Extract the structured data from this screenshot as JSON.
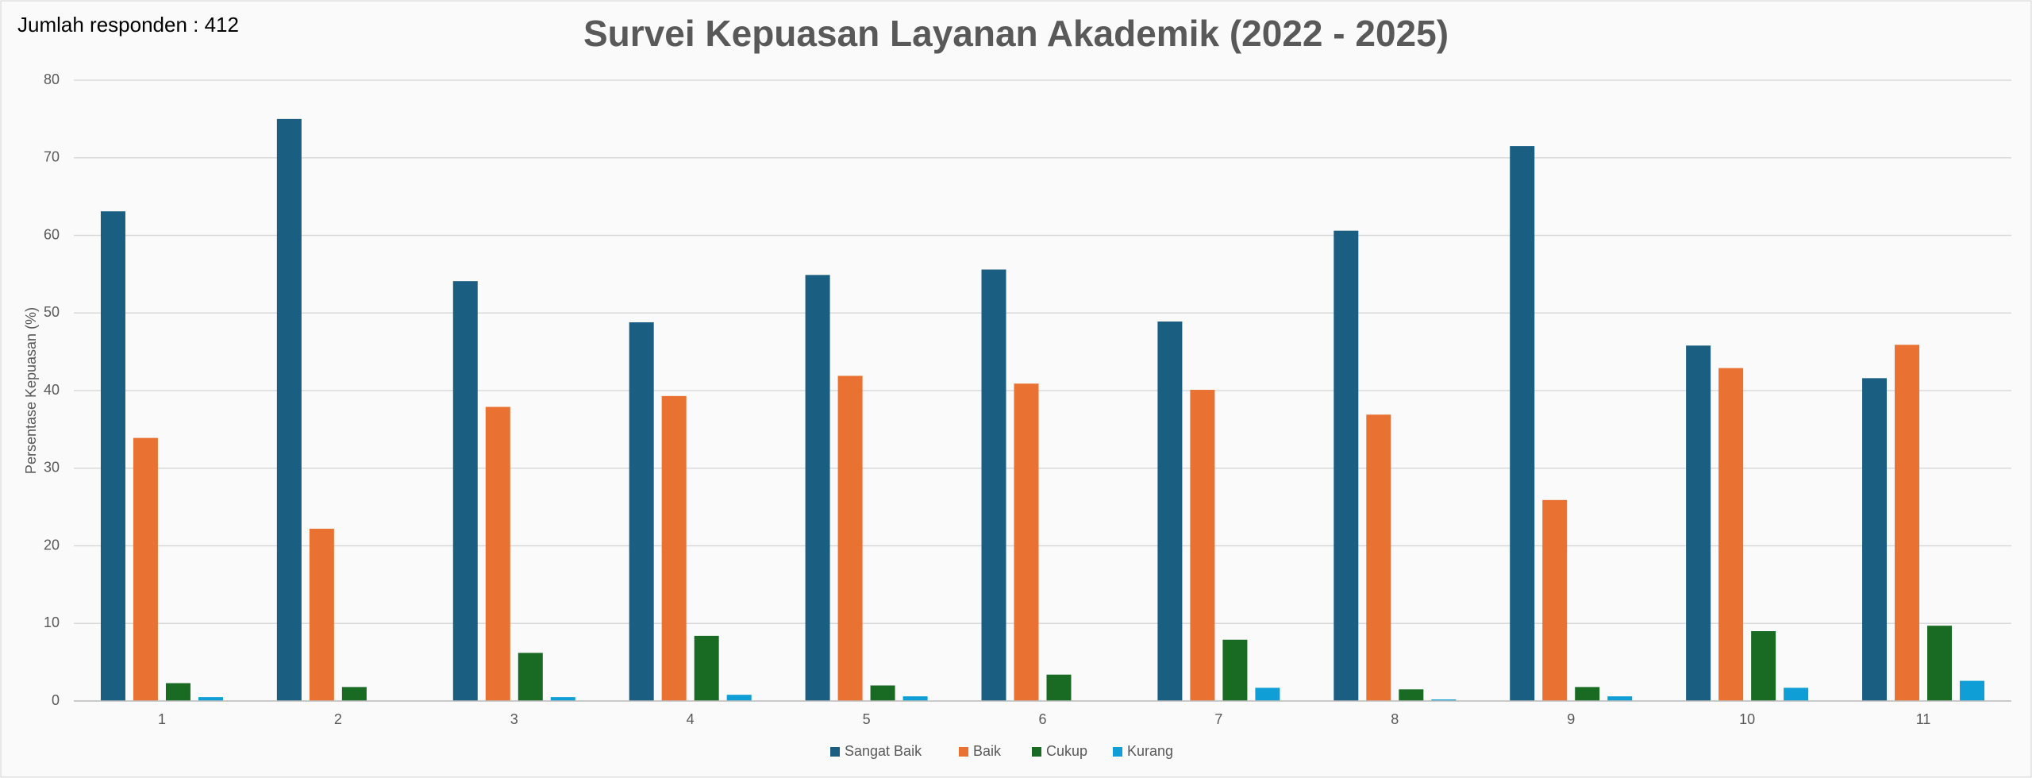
{
  "chart_data": {
    "type": "bar",
    "title": "Survei Kepuasan Layanan Akademik (2022 - 2025)",
    "note": "Jumlah responden : 412",
    "y_label": "Persentase Kepuasan (%)",
    "categories": [
      "1",
      "2",
      "3",
      "4",
      "5",
      "6",
      "7",
      "8",
      "9",
      "10",
      "11"
    ],
    "series": [
      {
        "name": "Sangat Baik",
        "color": "#1a5f82",
        "values": [
          63.1,
          75.0,
          54.1,
          48.8,
          54.9,
          55.6,
          48.9,
          60.6,
          71.5,
          45.8,
          41.6
        ]
      },
      {
        "name": "Baik",
        "color": "#e97132",
        "values": [
          33.9,
          22.2,
          37.9,
          39.3,
          41.9,
          40.9,
          40.1,
          36.9,
          25.9,
          42.9,
          45.9
        ]
      },
      {
        "name": "Cukup",
        "color": "#196b24",
        "values": [
          2.3,
          1.8,
          6.2,
          8.4,
          2.0,
          3.4,
          7.9,
          1.5,
          1.8,
          9.0,
          9.7
        ]
      },
      {
        "name": "Kurang",
        "color": "#0f9ed5",
        "values": [
          0.5,
          0,
          0.5,
          0.8,
          0.6,
          0,
          1.7,
          0.2,
          0.6,
          1.7,
          2.6
        ]
      }
    ],
    "ylim": [
      0,
      80
    ],
    "yticks": [
      0,
      10,
      20,
      30,
      40,
      50,
      60,
      70,
      80
    ],
    "grid": true,
    "legend": "bottom"
  }
}
